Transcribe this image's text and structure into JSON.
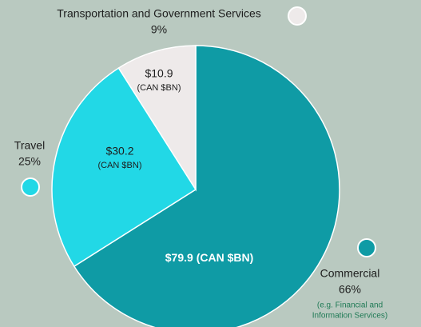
{
  "chart_data": {
    "type": "pie",
    "categories": [
      "Commercial",
      "Travel",
      "Transportation and Government Services"
    ],
    "values": [
      79.9,
      30.2,
      10.9
    ],
    "value_labels": [
      "$79.9",
      "$30.2",
      "$10.9"
    ],
    "unit_label": "(CAN $BN)",
    "shares": [
      66,
      25,
      9
    ],
    "share_labels": [
      "66%",
      "25%",
      "9%"
    ],
    "colors": [
      "#0f9ba5",
      "#22d8e6",
      "#eeeaea"
    ],
    "note": [
      "(e.g. Financial and",
      "Information Services)"
    ]
  }
}
